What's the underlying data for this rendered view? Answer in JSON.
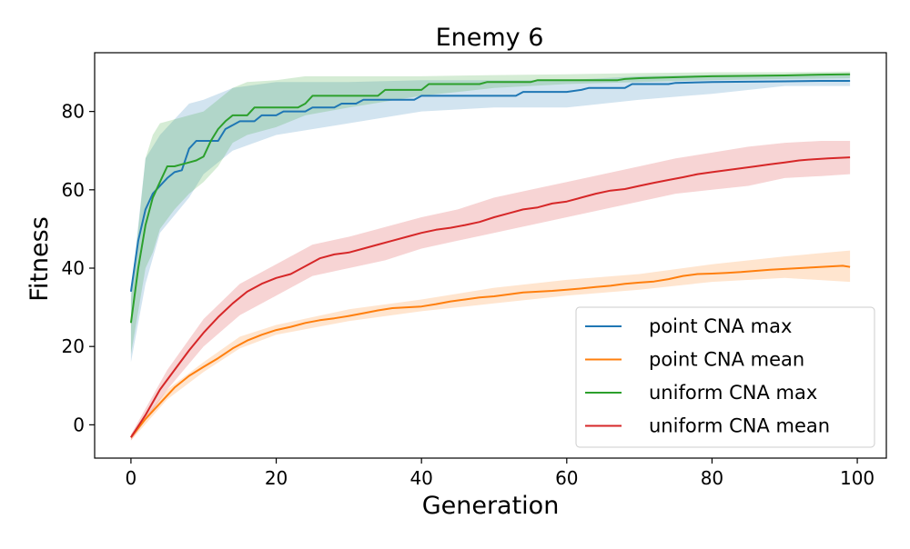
{
  "chart_data": {
    "type": "line",
    "title": "Enemy 6",
    "xlabel": "Generation",
    "ylabel": "Fitness",
    "xlim": [
      -5,
      104
    ],
    "ylim": [
      -8.5,
      95
    ],
    "xticks": [
      0,
      20,
      40,
      60,
      80,
      100
    ],
    "yticks": [
      0,
      20,
      40,
      60,
      80
    ],
    "grid": false,
    "legend_position": "lower-right",
    "series": [
      {
        "name": "point CNA max",
        "color": "#1f77b4",
        "points": [
          [
            0,
            34
          ],
          [
            1,
            47
          ],
          [
            2,
            55
          ],
          [
            3,
            59
          ],
          [
            4,
            61
          ],
          [
            5,
            63
          ],
          [
            6,
            64.5
          ],
          [
            7,
            65
          ],
          [
            8,
            70.5
          ],
          [
            9,
            72.5
          ],
          [
            10,
            72.5
          ],
          [
            12,
            72.5
          ],
          [
            13,
            75.5
          ],
          [
            15,
            77.5
          ],
          [
            17,
            77.5
          ],
          [
            18,
            79
          ],
          [
            20,
            79
          ],
          [
            21,
            80
          ],
          [
            24,
            80
          ],
          [
            25,
            81
          ],
          [
            28,
            81
          ],
          [
            29,
            82
          ],
          [
            31,
            82
          ],
          [
            32,
            83
          ],
          [
            39,
            83
          ],
          [
            40,
            84
          ],
          [
            53,
            84
          ],
          [
            54,
            85
          ],
          [
            60,
            85
          ],
          [
            62,
            85.5
          ],
          [
            63,
            86
          ],
          [
            68,
            86
          ],
          [
            69,
            87
          ],
          [
            74,
            87
          ],
          [
            75,
            87.3
          ],
          [
            80,
            87.5
          ],
          [
            85,
            87.6
          ],
          [
            90,
            87.7
          ],
          [
            95,
            87.8
          ],
          [
            99,
            87.8
          ]
        ],
        "band": [
          [
            0,
            16,
            34
          ],
          [
            2,
            36,
            68
          ],
          [
            4,
            49,
            74
          ],
          [
            8,
            58,
            82
          ],
          [
            10,
            64,
            83
          ],
          [
            14,
            70,
            86
          ],
          [
            20,
            74,
            87.5
          ],
          [
            30,
            77,
            87.5
          ],
          [
            40,
            80,
            88
          ],
          [
            50,
            81,
            88
          ],
          [
            60,
            81,
            88
          ],
          [
            70,
            83,
            89
          ],
          [
            80,
            84.5,
            89.3
          ],
          [
            90,
            86.5,
            89.4
          ],
          [
            99,
            86.5,
            89.4
          ]
        ]
      },
      {
        "name": "point CNA mean",
        "color": "#ff7f0e",
        "points": [
          [
            0,
            -3.2
          ],
          [
            2,
            1.5
          ],
          [
            4,
            5.5
          ],
          [
            6,
            9.5
          ],
          [
            8,
            12.5
          ],
          [
            10,
            14.8
          ],
          [
            12,
            17
          ],
          [
            14,
            19.5
          ],
          [
            16,
            21.5
          ],
          [
            18,
            23
          ],
          [
            20,
            24.2
          ],
          [
            22,
            25
          ],
          [
            24,
            26
          ],
          [
            26,
            26.7
          ],
          [
            28,
            27.2
          ],
          [
            30,
            27.8
          ],
          [
            32,
            28.5
          ],
          [
            34,
            29.2
          ],
          [
            36,
            29.8
          ],
          [
            38,
            30
          ],
          [
            40,
            30.2
          ],
          [
            42,
            30.8
          ],
          [
            44,
            31.5
          ],
          [
            46,
            32
          ],
          [
            48,
            32.5
          ],
          [
            50,
            32.8
          ],
          [
            52,
            33.3
          ],
          [
            54,
            33.8
          ],
          [
            56,
            34
          ],
          [
            58,
            34.2
          ],
          [
            60,
            34.5
          ],
          [
            62,
            34.8
          ],
          [
            64,
            35.2
          ],
          [
            66,
            35.5
          ],
          [
            68,
            36
          ],
          [
            70,
            36.3
          ],
          [
            72,
            36.6
          ],
          [
            74,
            37.2
          ],
          [
            76,
            38
          ],
          [
            78,
            38.5
          ],
          [
            80,
            38.6
          ],
          [
            82,
            38.8
          ],
          [
            84,
            39
          ],
          [
            86,
            39.3
          ],
          [
            88,
            39.6
          ],
          [
            90,
            39.8
          ],
          [
            92,
            40
          ],
          [
            94,
            40.2
          ],
          [
            96,
            40.4
          ],
          [
            98,
            40.6
          ],
          [
            99,
            40.3
          ]
        ],
        "band": [
          [
            0,
            -4,
            -2.5
          ],
          [
            5,
            6.5,
            9
          ],
          [
            10,
            13.5,
            16
          ],
          [
            15,
            19.5,
            22.5
          ],
          [
            20,
            23,
            25.5
          ],
          [
            30,
            26.5,
            29.5
          ],
          [
            40,
            29,
            32
          ],
          [
            50,
            31,
            35
          ],
          [
            60,
            33,
            37
          ],
          [
            70,
            34.5,
            38.5
          ],
          [
            80,
            36.5,
            41
          ],
          [
            90,
            37.5,
            43
          ],
          [
            99,
            36.5,
            44.5
          ]
        ]
      },
      {
        "name": "uniform CNA max",
        "color": "#2ca02c",
        "points": [
          [
            0,
            26
          ],
          [
            1,
            40
          ],
          [
            2,
            51
          ],
          [
            3,
            58
          ],
          [
            4,
            62
          ],
          [
            5,
            66
          ],
          [
            6,
            66
          ],
          [
            7,
            66.5
          ],
          [
            8,
            67
          ],
          [
            9,
            67.5
          ],
          [
            10,
            68.5
          ],
          [
            11,
            72.5
          ],
          [
            12,
            75.5
          ],
          [
            13,
            77.5
          ],
          [
            14,
            79
          ],
          [
            16,
            79
          ],
          [
            17,
            81
          ],
          [
            23,
            81
          ],
          [
            24,
            82
          ],
          [
            25,
            84
          ],
          [
            34,
            84
          ],
          [
            35,
            85.5
          ],
          [
            40,
            85.5
          ],
          [
            41,
            87
          ],
          [
            48,
            87
          ],
          [
            49,
            87.5
          ],
          [
            55,
            87.5
          ],
          [
            56,
            88
          ],
          [
            67,
            88
          ],
          [
            68,
            88.3
          ],
          [
            70,
            88.5
          ],
          [
            80,
            89
          ],
          [
            90,
            89.2
          ],
          [
            95,
            89.4
          ],
          [
            99,
            89.5
          ]
        ],
        "band": [
          [
            0,
            18,
            32
          ],
          [
            2,
            40,
            68
          ],
          [
            3,
            44,
            74
          ],
          [
            4,
            50,
            77
          ],
          [
            6,
            55,
            78
          ],
          [
            8,
            59,
            79
          ],
          [
            10,
            62,
            80
          ],
          [
            12,
            66,
            83
          ],
          [
            14,
            72,
            86
          ],
          [
            16,
            74,
            87.5
          ],
          [
            20,
            76,
            88
          ],
          [
            24,
            79,
            89
          ],
          [
            30,
            81,
            89
          ],
          [
            40,
            84,
            89
          ],
          [
            50,
            86,
            89.3
          ],
          [
            60,
            87,
            89.5
          ],
          [
            70,
            87.5,
            89.8
          ],
          [
            80,
            88,
            90
          ],
          [
            90,
            88.3,
            90
          ],
          [
            99,
            88.5,
            90.2
          ]
        ]
      },
      {
        "name": "uniform CNA mean",
        "color": "#d62728",
        "points": [
          [
            0,
            -3.2
          ],
          [
            2,
            2.5
          ],
          [
            4,
            9
          ],
          [
            6,
            14
          ],
          [
            8,
            19
          ],
          [
            10,
            23.5
          ],
          [
            12,
            27.5
          ],
          [
            14,
            31
          ],
          [
            16,
            34
          ],
          [
            18,
            36
          ],
          [
            20,
            37.5
          ],
          [
            22,
            38.5
          ],
          [
            24,
            40.5
          ],
          [
            26,
            42.5
          ],
          [
            28,
            43.5
          ],
          [
            30,
            44
          ],
          [
            32,
            45
          ],
          [
            34,
            46
          ],
          [
            36,
            47
          ],
          [
            38,
            48
          ],
          [
            40,
            49
          ],
          [
            42,
            49.8
          ],
          [
            44,
            50.3
          ],
          [
            46,
            51
          ],
          [
            48,
            51.8
          ],
          [
            50,
            53
          ],
          [
            52,
            54
          ],
          [
            54,
            55
          ],
          [
            56,
            55.5
          ],
          [
            58,
            56.5
          ],
          [
            60,
            57
          ],
          [
            62,
            58
          ],
          [
            64,
            59
          ],
          [
            66,
            59.8
          ],
          [
            68,
            60.2
          ],
          [
            70,
            61
          ],
          [
            72,
            61.8
          ],
          [
            74,
            62.5
          ],
          [
            76,
            63.2
          ],
          [
            78,
            64
          ],
          [
            80,
            64.5
          ],
          [
            82,
            65
          ],
          [
            84,
            65.5
          ],
          [
            86,
            66
          ],
          [
            88,
            66.5
          ],
          [
            90,
            67
          ],
          [
            92,
            67.5
          ],
          [
            94,
            67.8
          ],
          [
            96,
            68
          ],
          [
            98,
            68.2
          ],
          [
            99,
            68.3
          ]
        ],
        "band": [
          [
            0,
            -4,
            -2.5
          ],
          [
            5,
            9,
            14
          ],
          [
            10,
            20,
            27
          ],
          [
            15,
            28,
            36
          ],
          [
            20,
            33,
            41
          ],
          [
            25,
            38,
            46
          ],
          [
            30,
            40,
            48
          ],
          [
            35,
            42,
            50.5
          ],
          [
            40,
            45,
            53
          ],
          [
            45,
            47,
            55
          ],
          [
            50,
            49,
            58
          ],
          [
            55,
            51,
            60
          ],
          [
            60,
            53,
            62
          ],
          [
            65,
            55,
            64
          ],
          [
            70,
            57,
            66
          ],
          [
            75,
            59,
            68
          ],
          [
            80,
            60,
            69.5
          ],
          [
            85,
            61,
            71
          ],
          [
            90,
            63,
            72
          ],
          [
            95,
            63.5,
            72.5
          ],
          [
            99,
            64,
            72.5
          ]
        ]
      }
    ]
  }
}
